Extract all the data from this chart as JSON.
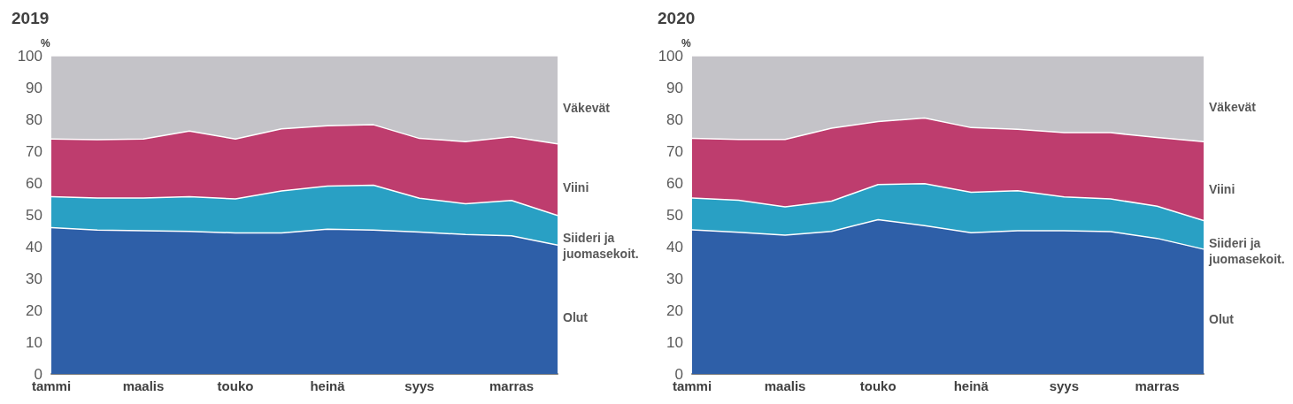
{
  "chart_data": [
    {
      "type": "area",
      "title": "2019",
      "ylabel": "%",
      "stacked": true,
      "grid": false,
      "categories": [
        "tammi",
        null,
        "maalis",
        null,
        "touko",
        null,
        "heinä",
        null,
        "syys",
        null,
        "marras",
        null
      ],
      "ylim": [
        0,
        100
      ],
      "yticks": [
        0,
        10,
        20,
        30,
        40,
        50,
        60,
        70,
        80,
        90,
        100
      ],
      "series": [
        {
          "name": "Olut",
          "color": "#2e5fa8",
          "values": [
            46,
            45.2,
            45,
            44.8,
            44.3,
            44.3,
            45.5,
            45.2,
            44.6,
            43.8,
            43.4,
            40.5
          ]
        },
        {
          "name": "Siideri ja juomasekoit.",
          "color": "#29a0c4",
          "values": [
            9.7,
            10.1,
            10.3,
            10.9,
            10.7,
            13.2,
            13.5,
            14.1,
            10.6,
            9.7,
            11.1,
            9.3
          ]
        },
        {
          "name": "Viini",
          "color": "#be3d6e",
          "values": [
            18.1,
            18.3,
            18.5,
            20.6,
            18.8,
            19.5,
            19,
            19,
            18.8,
            19.5,
            20,
            22.5
          ]
        },
        {
          "name": "Väkevät",
          "color": "#c4c3c8",
          "values": [
            26.2,
            26.4,
            26.2,
            23.7,
            26.2,
            23,
            22,
            21.7,
            26,
            27,
            25.5,
            27.7
          ]
        }
      ]
    },
    {
      "type": "area",
      "title": "2020",
      "ylabel": "%",
      "stacked": true,
      "grid": false,
      "categories": [
        "tammi",
        null,
        "maalis",
        null,
        "touko",
        null,
        "heinä",
        null,
        "syys",
        null,
        "marras",
        null
      ],
      "ylim": [
        0,
        100
      ],
      "yticks": [
        0,
        10,
        20,
        30,
        40,
        50,
        60,
        70,
        80,
        90,
        100
      ],
      "series": [
        {
          "name": "Olut",
          "color": "#2e5fa8",
          "values": [
            45.3,
            44.5,
            43.6,
            44.8,
            48.5,
            46.6,
            44.4,
            45,
            45,
            44.7,
            42.6,
            39.2
          ]
        },
        {
          "name": "Siideri ja juomasekoit.",
          "color": "#29a0c4",
          "values": [
            10,
            10.1,
            8.9,
            9.5,
            11,
            13.2,
            12.7,
            12.6,
            10.6,
            10.3,
            10.1,
            9
          ]
        },
        {
          "name": "Viini",
          "color": "#be3d6e",
          "values": [
            18.7,
            19.1,
            21.2,
            22.9,
            19.8,
            20.6,
            20.3,
            19.3,
            20.2,
            20.8,
            21.6,
            24.8
          ]
        },
        {
          "name": "Väkevät",
          "color": "#c4c3c8",
          "values": [
            26,
            26.3,
            26.3,
            22.8,
            20.7,
            19.6,
            22.6,
            23.1,
            24.2,
            24.2,
            25.7,
            27
          ]
        }
      ]
    }
  ]
}
